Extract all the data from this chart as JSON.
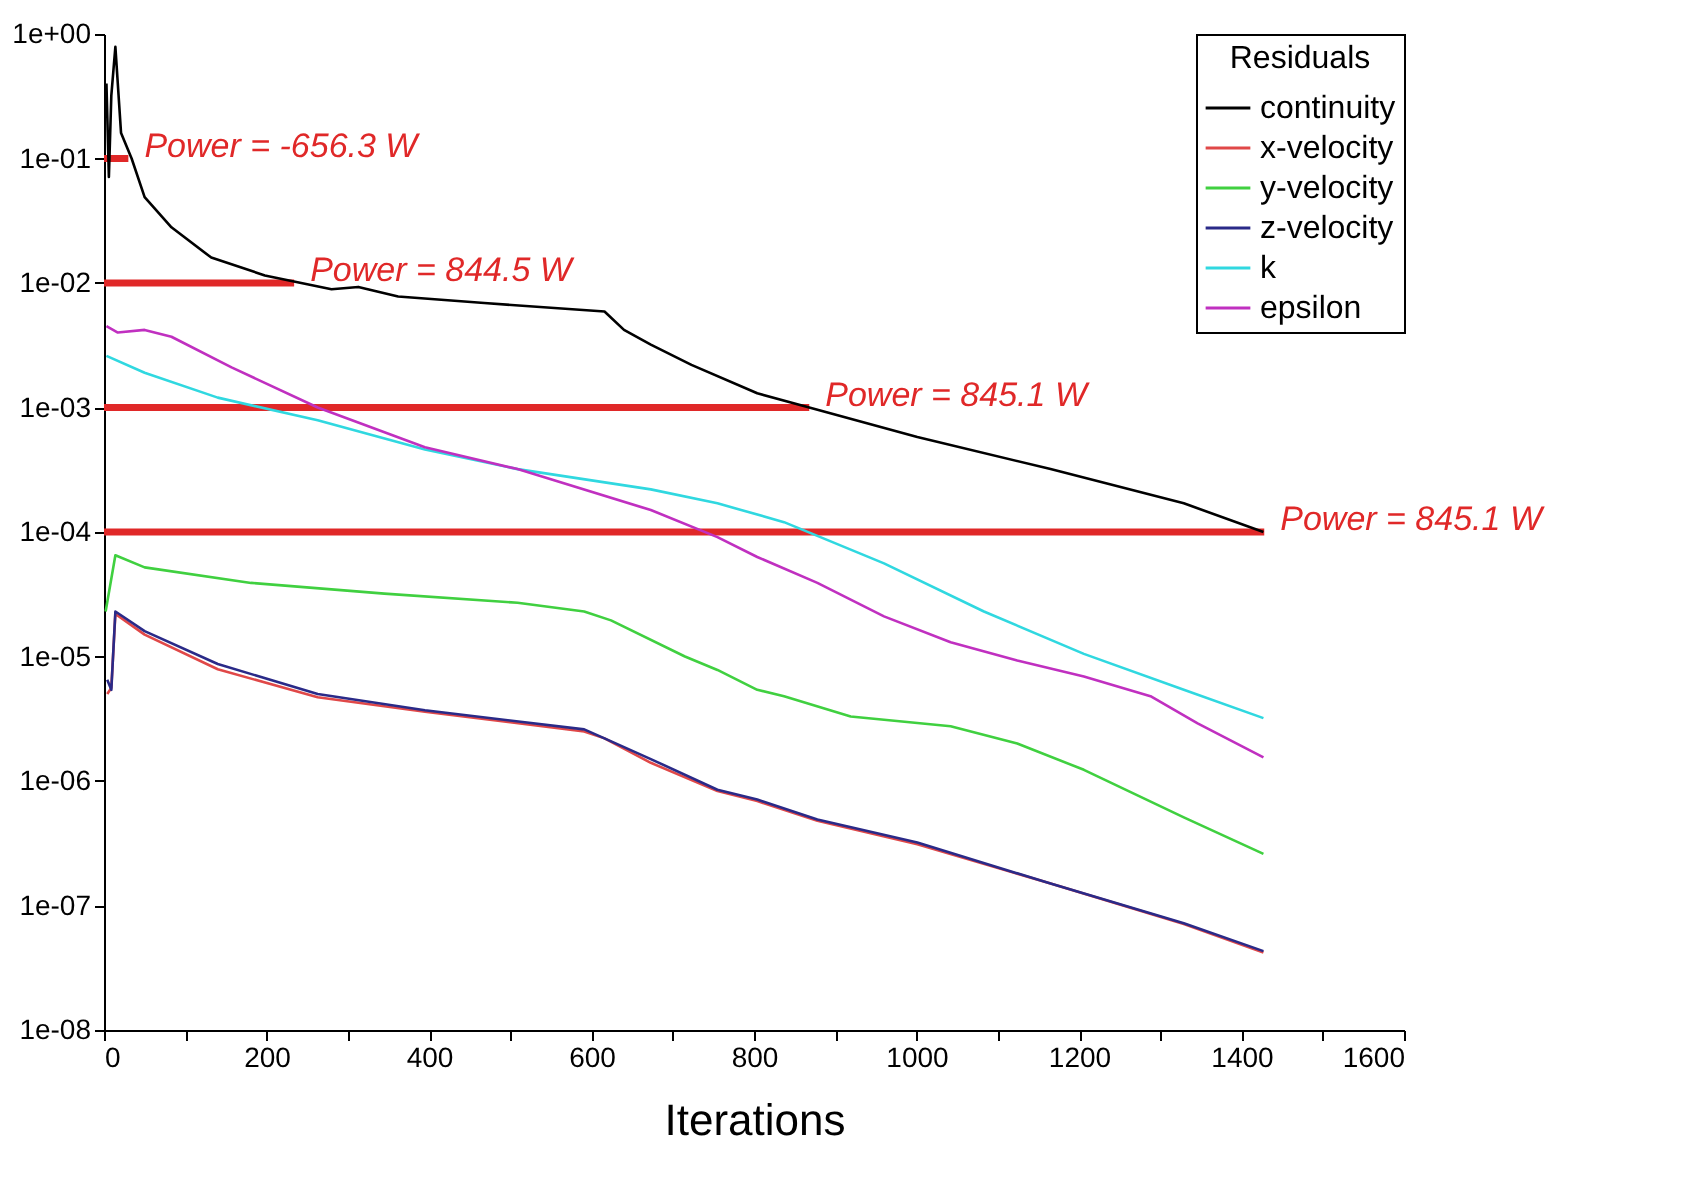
{
  "chart_data": {
    "type": "line",
    "xlabel": "Iterations",
    "legend_title": "Residuals",
    "legend": "top right",
    "grid": false,
    "log": "y",
    "xlim": [
      0,
      1600
    ],
    "xticks": [
      0,
      {
        "value": 100,
        "label": null
      },
      200,
      {
        "value": 300,
        "label": null
      },
      400,
      {
        "value": 500,
        "label": null
      },
      600,
      {
        "value": 700,
        "label": null
      },
      800,
      {
        "value": 900,
        "label": null
      },
      1000,
      {
        "value": 1100,
        "label": null
      },
      1200,
      {
        "value": 1300,
        "label": null
      },
      1400,
      {
        "value": 1500,
        "label": null
      },
      1600
    ],
    "ylim": [
      1e-08,
      1
    ],
    "yticks": [
      {
        "value": 1,
        "label": "1e+00"
      },
      {
        "value": 0.1,
        "label": "1e-01"
      },
      {
        "value": 0.01,
        "label": "1e-02"
      },
      {
        "value": 0.001,
        "label": "1e-03"
      },
      {
        "value": 0.0001,
        "label": "1e-04"
      },
      {
        "value": 1e-05,
        "label": "1e-05"
      },
      {
        "value": 1e-06,
        "label": "1e-06"
      },
      {
        "value": 1e-07,
        "label": "1e-07"
      },
      {
        "value": 1e-08,
        "label": "1e-08"
      }
    ],
    "series": [
      {
        "name": "continuity",
        "color": "#000000",
        "x": [
          3,
          6,
          9,
          14,
          21,
          34,
          50,
          83,
          132,
          198,
          280,
          313,
          362,
          468,
          616,
          640,
          673,
          723,
          804,
          868,
          1001,
          1165,
          1329,
          1427
        ],
        "values": [
          0.4,
          0.071,
          0.32,
          0.79,
          0.16,
          0.1,
          0.049,
          0.028,
          0.016,
          0.0115,
          0.0089,
          0.0093,
          0.0078,
          0.0069,
          0.0059,
          0.0042,
          0.0032,
          0.0022,
          0.0013,
          0.001,
          0.00058,
          0.00032,
          0.00017,
          0.0001
        ]
      },
      {
        "name": "x-velocity",
        "color": "#e04848",
        "x": [
          4,
          9,
          14,
          50,
          140,
          263,
          395,
          591,
          616,
          673,
          755,
          804,
          878,
          1001,
          1165,
          1329,
          1427
        ],
        "values": [
          5e-06,
          5.6e-06,
          2.2e-05,
          1.5e-05,
          7.9e-06,
          4.7e-06,
          3.6e-06,
          2.5e-06,
          2.2e-06,
          1.4e-06,
          8.3e-07,
          6.9e-07,
          4.8e-07,
          3.1e-07,
          1.5e-07,
          7.1e-08,
          4.2e-08
        ]
      },
      {
        "name": "y-velocity",
        "color": "#40d040",
        "x": [
          2,
          14,
          50,
          181,
          345,
          509,
          591,
          624,
          715,
          755,
          804,
          837,
          919,
          1042,
          1124,
          1206,
          1329,
          1427
        ],
        "values": [
          2.3e-05,
          6.5e-05,
          5.2e-05,
          3.9e-05,
          3.2e-05,
          2.7e-05,
          2.3e-05,
          1.95e-05,
          1e-05,
          7.8e-06,
          5.4e-06,
          4.8e-06,
          3.3e-06,
          2.75e-06,
          2e-06,
          1.23e-06,
          5.1e-07,
          2.6e-07
        ]
      },
      {
        "name": "z-velocity",
        "color": "#2a2a88",
        "x": [
          4,
          9,
          14,
          50,
          140,
          263,
          395,
          591,
          616,
          673,
          755,
          804,
          878,
          1001,
          1165,
          1329,
          1427
        ],
        "values": [
          6.5e-06,
          5.4e-06,
          2.3e-05,
          1.6e-05,
          8.7e-06,
          5e-06,
          3.7e-06,
          2.6e-06,
          2.2e-06,
          1.5e-06,
          8.5e-07,
          7.1e-07,
          4.9e-07,
          3.2e-07,
          1.5e-07,
          7.2e-08,
          4.3e-08
        ]
      },
      {
        "name": "k",
        "color": "#30d8e0",
        "x": [
          3,
          50,
          140,
          263,
          395,
          509,
          673,
          755,
          837,
          960,
          1083,
          1206,
          1329,
          1427
        ],
        "values": [
          0.0026,
          0.0019,
          0.0012,
          0.00079,
          0.00046,
          0.00032,
          0.00022,
          0.00017,
          0.00012,
          5.6e-05,
          2.3e-05,
          1.05e-05,
          5.4e-06,
          3.2e-06
        ]
      },
      {
        "name": "epsilon",
        "color": "#c030c0",
        "x": [
          3,
          17,
          50,
          83,
          157,
          263,
          395,
          509,
          673,
          755,
          804,
          878,
          960,
          1042,
          1124,
          1206,
          1288,
          1346,
          1427
        ],
        "values": [
          0.0045,
          0.004,
          0.0042,
          0.0037,
          0.0021,
          0.001,
          0.00048,
          0.00032,
          0.00015,
          9.1e-05,
          6.3e-05,
          3.9e-05,
          2.1e-05,
          1.3e-05,
          9.3e-06,
          6.9e-06,
          4.8e-06,
          2.9e-06,
          1.55e-06
        ]
      },
      {
        "color": "#e02828",
        "x": [
          0,
          30
        ],
        "values": [
          0.1,
          0.1
        ]
      },
      {
        "color": "#e02828",
        "x": [
          0,
          234
        ],
        "values": [
          0.01,
          0.01
        ]
      },
      {
        "color": "#e02828",
        "x": [
          0,
          868
        ],
        "values": [
          0.001,
          0.001
        ]
      },
      {
        "color": "#e02828",
        "x": [
          0,
          1428
        ],
        "values": [
          0.0001,
          0.0001
        ]
      }
    ],
    "annotations": [
      {
        "text": "Power = -656.3 W",
        "x": 30,
        "y": 0.1
      },
      {
        "text": "Power = 844.5 W",
        "x": 234,
        "y": 0.01
      },
      {
        "text": "Power = 845.1 W",
        "x": 868,
        "y": 0.001
      },
      {
        "text": "Power = 845.1 W",
        "x": 1428,
        "y": 0.0001
      }
    ]
  }
}
